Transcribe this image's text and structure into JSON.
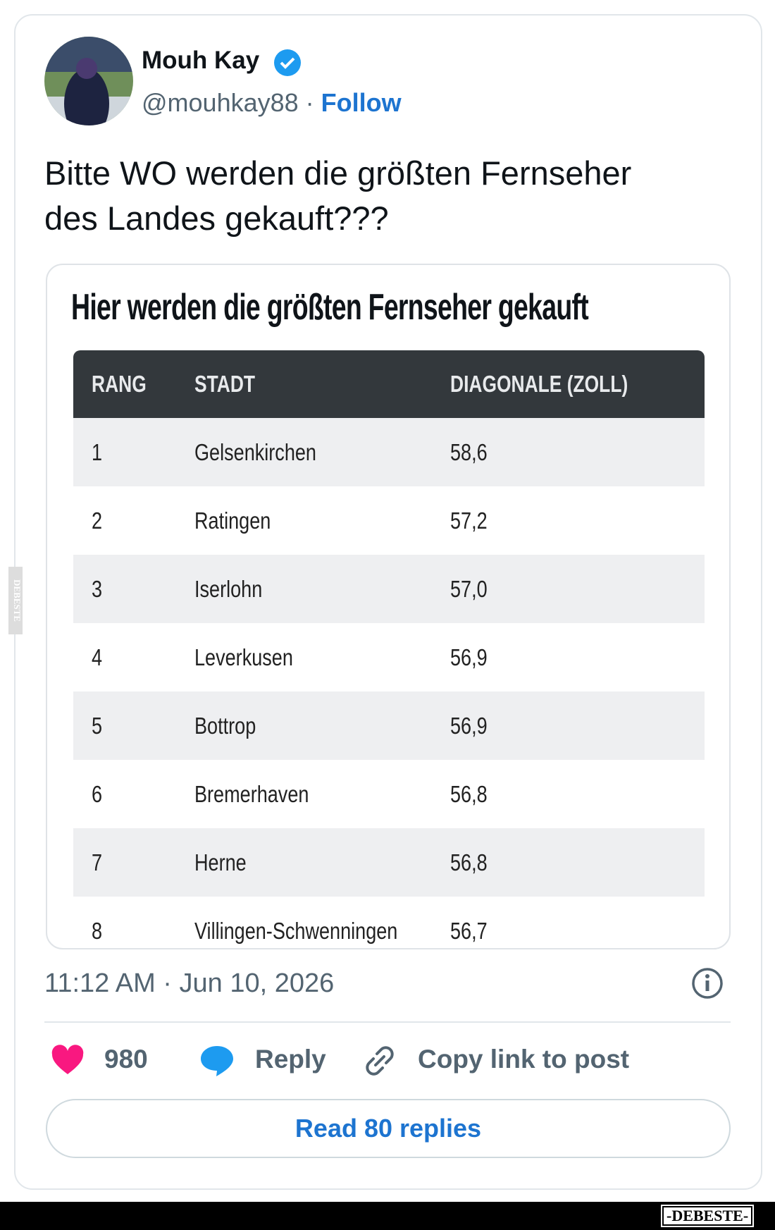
{
  "author": {
    "name": "Mouh Kay",
    "handle": "@mouhkay88",
    "follow": "Follow"
  },
  "text": [
    "Bitte WO werden die größten Fernseher",
    "des Landes gekauft???"
  ],
  "embed": {
    "title": "Hier werden die größten Fernseher gekauft",
    "table": {
      "headers": [
        "RANG",
        "STADT",
        "DIAGONALE (ZOLL)"
      ],
      "rows": [
        [
          "1",
          "Gelsenkirchen",
          "58,6"
        ],
        [
          "2",
          "Ratingen",
          "57,2"
        ],
        [
          "3",
          "Iserlohn",
          "57,0"
        ],
        [
          "4",
          "Leverkusen",
          "56,9"
        ],
        [
          "5",
          "Bottrop",
          "56,9"
        ],
        [
          "6",
          "Bremerhaven",
          "56,8"
        ],
        [
          "7",
          "Herne",
          "56,8"
        ],
        [
          "8",
          "Villingen-Schwenningen",
          "56,7"
        ]
      ]
    }
  },
  "timestamp": "11:12 AM · Jun 10, 2026",
  "actions": {
    "likes": 980,
    "reply": "Reply",
    "copy": "Copy link to post",
    "read": "Read 80 replies"
  },
  "watermark": {
    "side": "DEBESTE",
    "bottom": "-DEBESTE-"
  }
}
